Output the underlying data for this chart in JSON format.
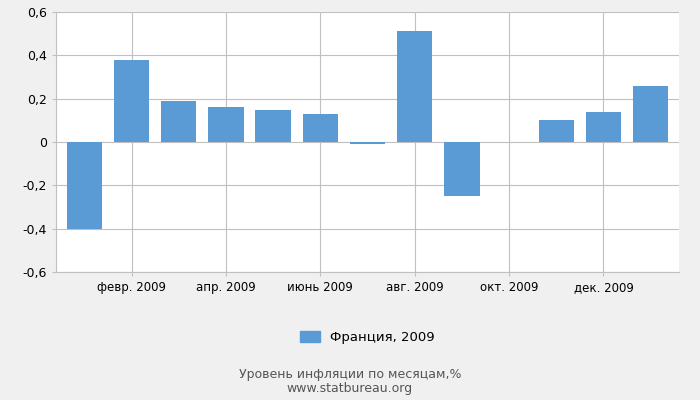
{
  "values": [
    -0.4,
    0.38,
    0.19,
    0.16,
    0.15,
    0.13,
    -0.01,
    0.51,
    -0.25,
    0.0,
    0.1,
    0.14,
    0.26
  ],
  "n_bars": 13,
  "xtick_labels": [
    "февр. 2009",
    "апр. 2009",
    "июнь 2009",
    "авг. 2009",
    "окт. 2009",
    "дек. 2009"
  ],
  "xtick_positions": [
    1,
    3,
    5,
    7,
    9,
    11
  ],
  "bar_color": "#5b9bd5",
  "ylim": [
    -0.6,
    0.6
  ],
  "yticks": [
    -0.6,
    -0.4,
    -0.2,
    0.0,
    0.2,
    0.4,
    0.6
  ],
  "ytick_labels": [
    "-0,6",
    "-0,4",
    "-0,2",
    "0",
    "0,2",
    "0,4",
    "0,6"
  ],
  "legend_label": "Франция, 2009",
  "xlabel": "Уровень инфляции по месяцам,%",
  "source": "www.statbureau.org",
  "plot_bg": "#ffffff",
  "fig_bg": "#f0f0f0",
  "grid_color": "#c0c0c0"
}
